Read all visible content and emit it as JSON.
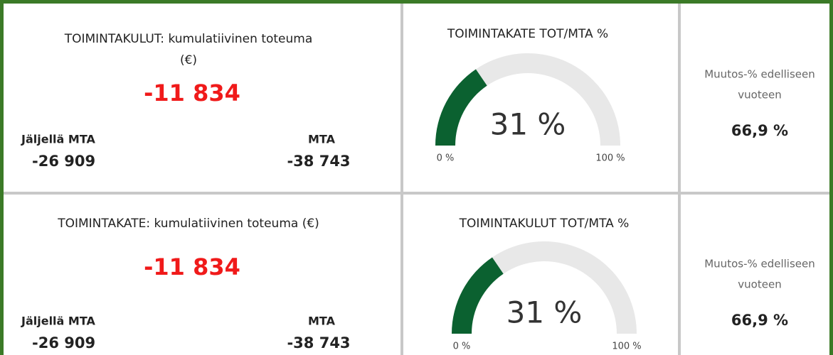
{
  "rows": [
    {
      "kpi": {
        "title_lines": [
          "TOIMINTAKULUT: kumulatiivinen toteuma",
          "(€)"
        ],
        "value": "-11 834",
        "left_label": "Jäljellä MTA",
        "left_value": "-26 909",
        "right_label": "MTA",
        "right_value": "-38 743"
      },
      "gauge": {
        "title": "TOIMINTAKATE TOT/MTA %",
        "value": 31,
        "value_label": "31 %",
        "min": {
          "value": 0,
          "label": "0 %"
        },
        "max": {
          "value": 100,
          "label": "100 %"
        },
        "color": "#0b6130",
        "track_color": "#e8e8e8"
      },
      "change": {
        "label_lines": [
          "Muutos-% edelliseen",
          "vuoteen"
        ],
        "value": "66,9 %"
      }
    },
    {
      "kpi": {
        "title_lines": [
          "TOIMINTAKATE: kumulatiivinen toteuma (€)"
        ],
        "value": "-11 834",
        "left_label": "Jäljellä MTA",
        "left_value": "-26 909",
        "right_label": "MTA",
        "right_value": "-38 743"
      },
      "gauge": {
        "title": "TOIMINTAKULUT TOT/MTA %",
        "value": 31,
        "value_label": "31 %",
        "min": {
          "value": 0,
          "label": "0 %"
        },
        "max": {
          "value": 100,
          "label": "100 %"
        },
        "color": "#0b6130",
        "track_color": "#e8e8e8"
      },
      "change": {
        "label_lines": [
          "Muutos-% edelliseen",
          "vuoteen"
        ],
        "value": "66,9 %"
      }
    }
  ]
}
